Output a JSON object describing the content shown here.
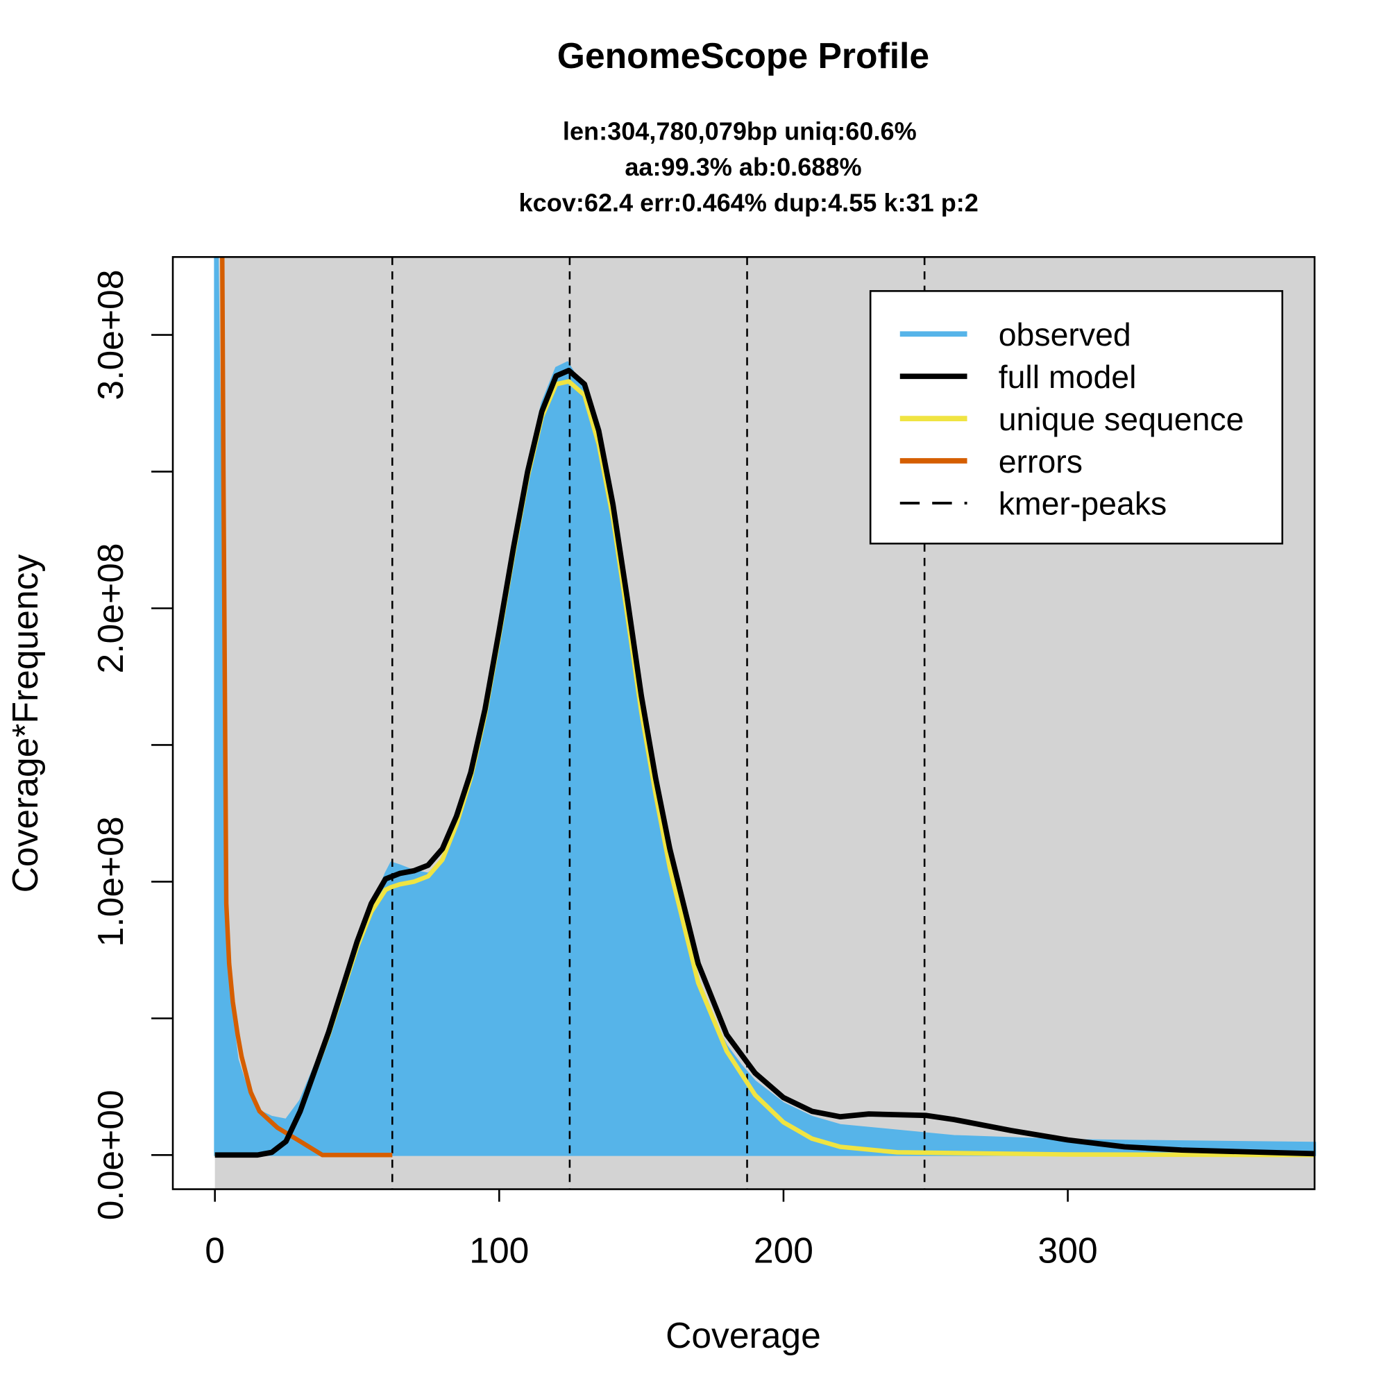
{
  "chart_data": {
    "type": "line",
    "title": "GenomeScope Profile",
    "subtitle_lines": [
      "len:304,780,079bp uniq:60.6%",
      "aa:99.3% ab:0.688%",
      "kcov:62.4 err:0.464%  dup:4.55  k:31 p:2"
    ],
    "xlabel": "Coverage",
    "ylabel": "Coverage*Frequency",
    "xlim": [
      -14.8,
      386.8
    ],
    "ylim": [
      -12.5,
      328.5
    ],
    "y_unit": "millions",
    "x_ticks": [
      0,
      100,
      200,
      300
    ],
    "x_tick_labels": [
      "0",
      "100",
      "200",
      "300"
    ],
    "y_ticks": [
      0,
      50,
      100,
      150,
      200,
      250,
      300
    ],
    "y_tick_labels": [
      "0.0e+00",
      "",
      "1.0e+08",
      "",
      "2.0e+08",
      "",
      "3.0e+08"
    ],
    "kmer_peaks": [
      62.4,
      124.8,
      187.2,
      249.6
    ],
    "legend_position": "top-right",
    "colors": {
      "background": "#d3d3d3",
      "observed": "#56b4e9",
      "full_model": "#000000",
      "unique": "#f0e442",
      "errors": "#d55e00"
    },
    "legend": [
      "observed",
      "full model",
      "unique sequence",
      "errors",
      "kmer-peaks"
    ],
    "series": [
      {
        "name": "observed",
        "x": [
          0,
          1,
          2,
          3,
          5,
          8,
          12,
          16,
          20,
          25,
          30,
          40,
          50,
          55,
          60,
          62,
          65,
          70,
          75,
          80,
          85,
          90,
          95,
          100,
          105,
          110,
          115,
          120,
          124,
          130,
          135,
          140,
          145,
          150,
          155,
          160,
          165,
          170,
          175,
          180,
          185,
          190,
          200,
          210,
          220,
          240,
          260,
          300,
          387
        ],
        "y": [
          330,
          330,
          250,
          120,
          60,
          35,
          22,
          16,
          14,
          13,
          20,
          45,
          78,
          90,
          103,
          107,
          106,
          104,
          103,
          107,
          118,
          135,
          160,
          190,
          222,
          252,
          275,
          288,
          290,
          280,
          262,
          235,
          200,
          165,
          135,
          108,
          83,
          64,
          50,
          40,
          33,
          27,
          19,
          14,
          11,
          9,
          7,
          5.5,
          4.5
        ]
      },
      {
        "name": "full model",
        "x": [
          0,
          15,
          20,
          25,
          30,
          40,
          50,
          55,
          60,
          65,
          70,
          75,
          80,
          85,
          90,
          95,
          100,
          105,
          110,
          115,
          120,
          124.5,
          130,
          135,
          140,
          145,
          150,
          155,
          160,
          170,
          180,
          190,
          200,
          210,
          220,
          230,
          250,
          260,
          270,
          280,
          300,
          320,
          340,
          387
        ],
        "y": [
          0,
          0,
          1,
          5,
          16,
          45,
          78,
          92,
          101,
          103,
          104,
          106,
          112,
          124,
          140,
          163,
          192,
          222,
          250,
          272,
          285,
          287,
          282,
          265,
          238,
          204,
          168,
          138,
          112,
          70,
          44,
          30,
          21,
          16,
          14,
          15,
          14.5,
          13,
          11,
          9,
          5.5,
          3,
          1.8,
          0.5
        ]
      },
      {
        "name": "unique sequence",
        "x": [
          0,
          15,
          20,
          25,
          30,
          40,
          50,
          55,
          60,
          62,
          65,
          70,
          75,
          80,
          85,
          90,
          95,
          100,
          105,
          110,
          115,
          120,
          124.5,
          130,
          135,
          140,
          145,
          150,
          155,
          160,
          170,
          180,
          190,
          200,
          210,
          220,
          240,
          300,
          387
        ],
        "y": [
          0,
          0,
          1,
          5,
          16,
          44,
          76,
          89,
          97,
          98,
          99,
          100,
          102,
          108,
          121,
          138,
          161,
          190,
          220,
          248,
          270,
          282,
          283,
          278,
          260,
          233,
          198,
          162,
          132,
          105,
          63,
          38,
          22,
          12,
          6,
          3,
          1,
          0.2,
          0
        ]
      },
      {
        "name": "errors",
        "x": [
          2.6,
          3,
          4,
          5,
          6.3,
          8,
          9.4,
          12.6,
          15.7,
          22,
          30,
          37.8,
          62.4
        ],
        "y": [
          330,
          250,
          92,
          70,
          56,
          44,
          36,
          23,
          16,
          10,
          5,
          0,
          0
        ]
      }
    ]
  }
}
